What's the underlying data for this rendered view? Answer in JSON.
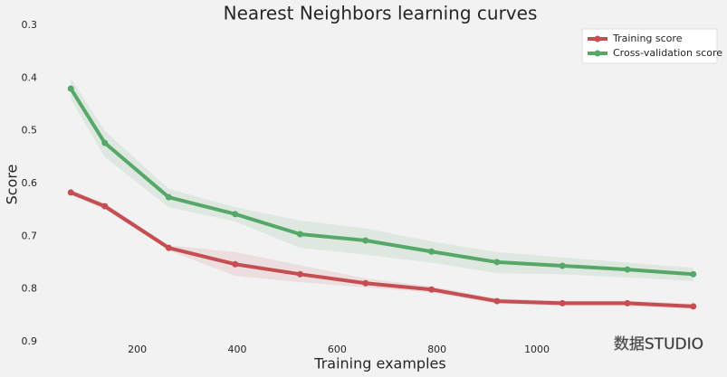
{
  "chart_data": {
    "type": "line",
    "title": "Nearest Neighbors learning curves",
    "xlabel": "Training examples",
    "ylabel": "Score",
    "x": [
      67,
      135,
      263,
      396,
      526,
      657,
      789,
      920,
      1051,
      1181,
      1313
    ],
    "series": [
      {
        "name": "Training score",
        "color": "#c44e52",
        "values": [
          0.617,
          0.643,
          0.722,
          0.753,
          0.772,
          0.789,
          0.801,
          0.823,
          0.827,
          0.827,
          0.833
        ],
        "lower": [
          0.612,
          0.637,
          0.717,
          0.73,
          0.755,
          0.78,
          0.795,
          0.818,
          0.822,
          0.822,
          0.828
        ],
        "upper": [
          0.622,
          0.649,
          0.727,
          0.775,
          0.787,
          0.797,
          0.807,
          0.828,
          0.832,
          0.832,
          0.838
        ]
      },
      {
        "name": "Cross-validation score",
        "color": "#55a868",
        "values": [
          0.42,
          0.523,
          0.626,
          0.658,
          0.696,
          0.708,
          0.729,
          0.749,
          0.756,
          0.763,
          0.772
        ],
        "lower": [
          0.4,
          0.5,
          0.61,
          0.645,
          0.67,
          0.685,
          0.71,
          0.73,
          0.74,
          0.75,
          0.76
        ],
        "upper": [
          0.44,
          0.55,
          0.645,
          0.672,
          0.722,
          0.735,
          0.75,
          0.77,
          0.772,
          0.778,
          0.785
        ]
      }
    ],
    "xlim": [
      5,
      1375
    ],
    "xticks": [
      200,
      400,
      600,
      800,
      1000
    ],
    "ylim": [
      0.3,
      0.9
    ],
    "yticks": [
      0.3,
      0.4,
      0.5,
      0.6,
      0.7,
      0.8,
      0.9
    ],
    "y_inverted": true,
    "grid": false,
    "legend": "upper right",
    "watermark": "数据STUDIO"
  }
}
